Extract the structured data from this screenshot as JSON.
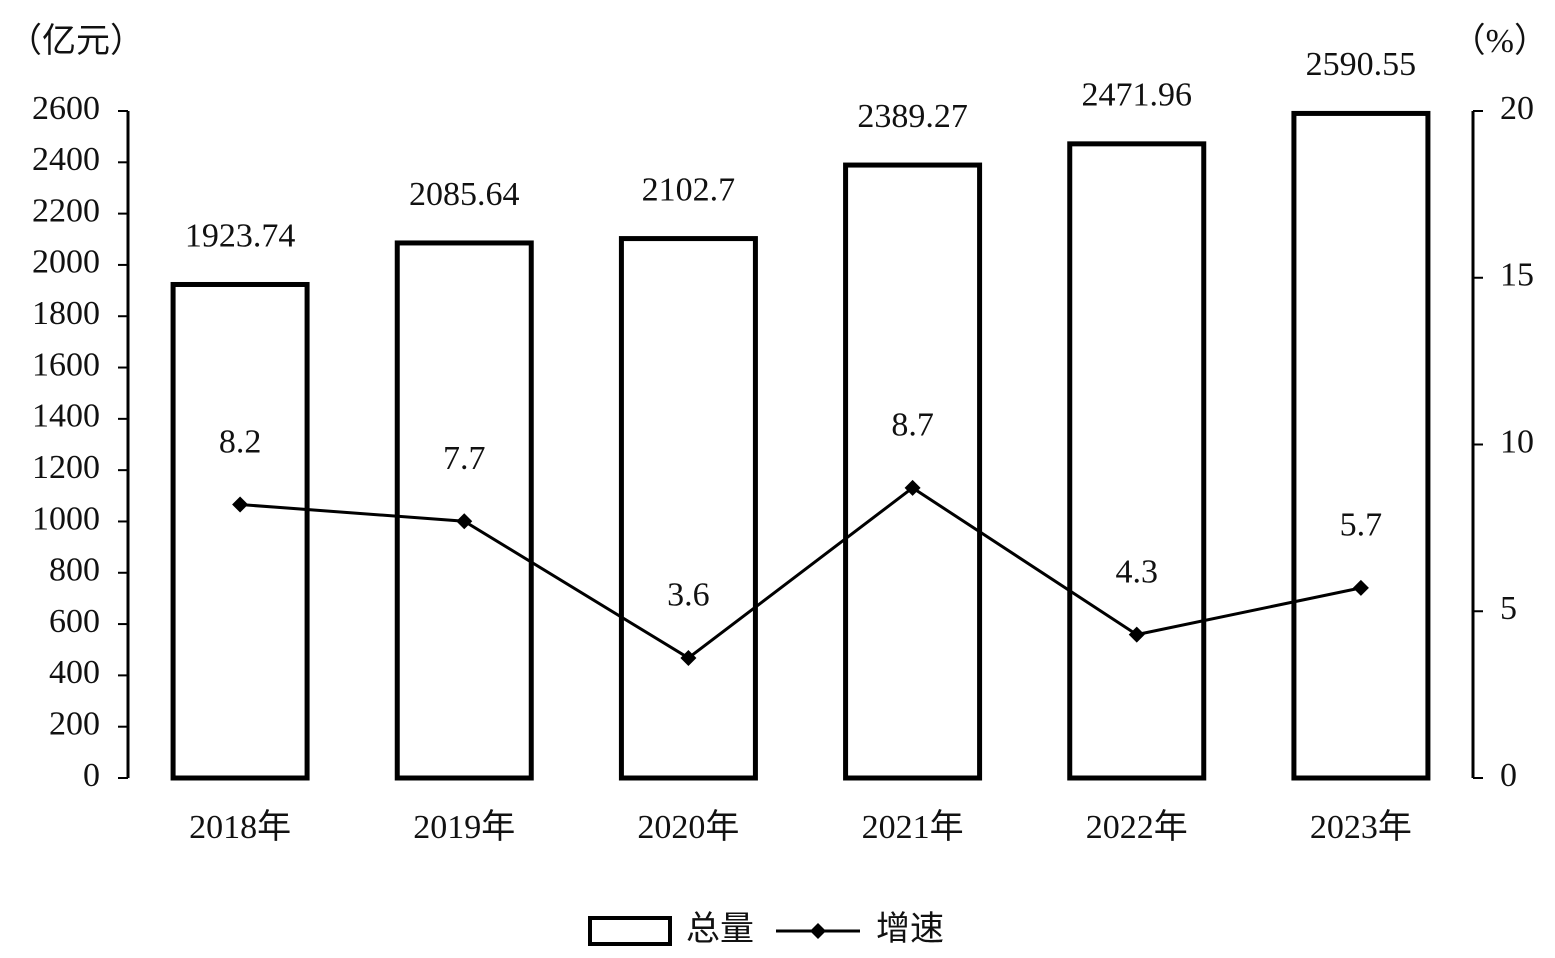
{
  "chart_data": {
    "type": "bar",
    "y_label": "（亿元）",
    "y2_label": "（%）",
    "categories": [
      "2018年",
      "2019年",
      "2020年",
      "2021年",
      "2022年",
      "2023年"
    ],
    "series": [
      {
        "name": "总量",
        "type": "bar",
        "color": "#000000",
        "fill": "#ffffff",
        "values": [
          1923.74,
          2085.64,
          2102.7,
          2389.27,
          2471.96,
          2590.55
        ]
      },
      {
        "name": "增速",
        "type": "line",
        "axis": "y2",
        "color": "#000000",
        "values": [
          8.2,
          7.7,
          3.6,
          8.7,
          4.3,
          5.7
        ]
      }
    ],
    "ylim": [
      0,
      2600
    ],
    "yticks": [
      0,
      200,
      400,
      600,
      800,
      1000,
      1200,
      1400,
      1600,
      1800,
      2000,
      2200,
      2400,
      2600
    ],
    "y2lim": [
      0,
      20
    ],
    "y2ticks": [
      0,
      5,
      10,
      15,
      20
    ],
    "legend": "bottom",
    "grid": false
  }
}
